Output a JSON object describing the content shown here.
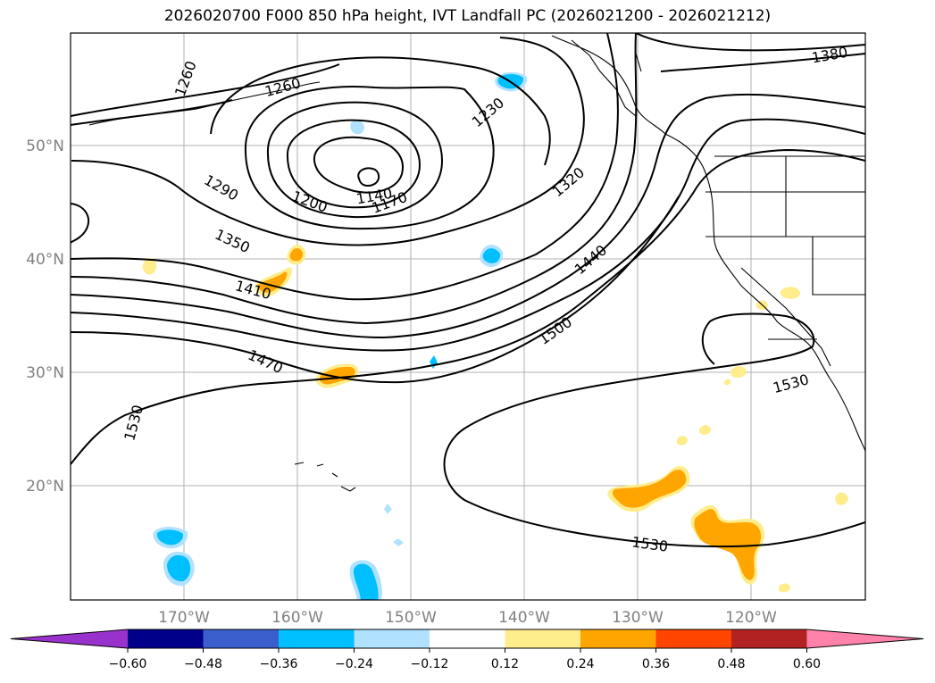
{
  "title": "2026020700 F000 850 hPa height, IVT Landfall PC (2026021200 - 2026021212)",
  "map": {
    "lon_labels": [
      "170°W",
      "160°W",
      "150°W",
      "140°W",
      "130°W",
      "120°W"
    ],
    "lat_labels": [
      "50°N",
      "40°N",
      "30°N",
      "20°N"
    ],
    "contour_labels": [
      "1260",
      "1260",
      "1230",
      "1380",
      "1290",
      "1200",
      "1140",
      "1170",
      "1320",
      "1350",
      "1440",
      "1410",
      "1500",
      "1470",
      "1530",
      "1530",
      "1530"
    ]
  },
  "colorbar": {
    "ticks": [
      "−0.60",
      "−0.48",
      "−0.36",
      "−0.24",
      "−0.12",
      "0.12",
      "0.24",
      "0.36",
      "0.48",
      "0.60"
    ],
    "colors": [
      "#9932cc",
      "#00008b",
      "#3a5fcd",
      "#00bfff",
      "#b0e2ff",
      "#ffffff",
      "#ffec8b",
      "#ffa500",
      "#ff4500",
      "#b22222",
      "#ff82ab"
    ]
  }
}
